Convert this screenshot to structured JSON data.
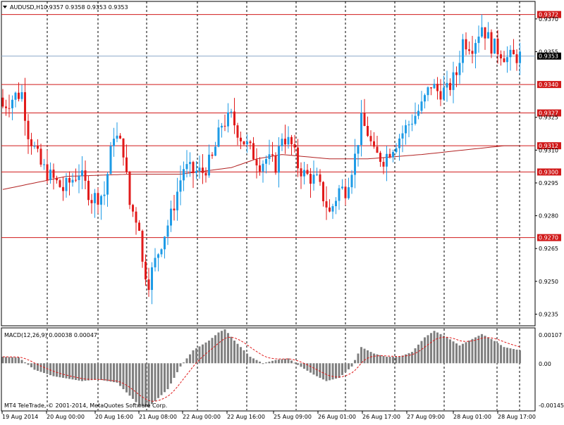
{
  "header": {
    "symbol_timeframe": "AUDUSD,H1",
    "ohlc": "0.9357 0.9358 0.9353 0.9353"
  },
  "macd": {
    "label": "MACD(12,26,9) 0.00038 0.00047",
    "top_label": "0.00107",
    "zero_label": "0.00",
    "bottom_label": "-0.00145"
  },
  "copyright": "MT4 TeleTrade, © 2001-2014, MetaQuotes Software Corp.",
  "colors": {
    "bull": "#1e9be6",
    "bear": "#e11b1b",
    "level_line": "#d11a1a",
    "current_line": "#8aa8c8",
    "ma_line": "#b22222",
    "macd_hist": "#808080",
    "signal_line": "#e11b1b"
  },
  "chart_data": {
    "type": "candlestick",
    "symbol": "AUDUSD",
    "timeframe": "H1",
    "current_price": 0.9353,
    "current_price_label": "0.9353",
    "price_axis_labels": [
      "0.9370",
      "0.9355",
      "0.9325",
      "0.9310",
      "0.9295",
      "0.9280",
      "0.9265",
      "0.9250",
      "0.9235"
    ],
    "levels": [
      {
        "value": 0.9372,
        "label": "0.9372"
      },
      {
        "value": 0.934,
        "label": "0.9340"
      },
      {
        "value": 0.9327,
        "label": "0.9327"
      },
      {
        "value": 0.9312,
        "label": "0.9312"
      },
      {
        "value": 0.93,
        "label": "0.9300"
      },
      {
        "value": 0.927,
        "label": "0.9270"
      }
    ],
    "time_labels": [
      "19 Aug 2014",
      "20 Aug 00:00",
      "20 Aug 16:00",
      "21 Aug 08:00",
      "22 Aug 00:00",
      "22 Aug 16:00",
      "25 Aug 09:00",
      "26 Aug 01:00",
      "26 Aug 17:00",
      "27 Aug 09:00",
      "28 Aug 01:00",
      "28 Aug 17:00"
    ],
    "close_path": [
      [
        0,
        0.933
      ],
      [
        4,
        0.9335
      ],
      [
        6,
        0.9336
      ],
      [
        8,
        0.9318
      ],
      [
        12,
        0.9303
      ],
      [
        15,
        0.9298
      ],
      [
        19,
        0.9292
      ],
      [
        24,
        0.93
      ],
      [
        28,
        0.9288
      ],
      [
        32,
        0.929
      ],
      [
        35,
        0.9318
      ],
      [
        38,
        0.931
      ],
      [
        40,
        0.9285
      ],
      [
        43,
        0.9276
      ],
      [
        44,
        0.9258
      ],
      [
        46,
        0.925
      ],
      [
        50,
        0.9268
      ],
      [
        53,
        0.928
      ],
      [
        57,
        0.9302
      ],
      [
        60,
        0.93
      ],
      [
        63,
        0.93
      ],
      [
        66,
        0.9306
      ],
      [
        69,
        0.9322
      ],
      [
        72,
        0.9325
      ],
      [
        75,
        0.9316
      ],
      [
        78,
        0.931
      ],
      [
        81,
        0.9304
      ],
      [
        83,
        0.9306
      ],
      [
        86,
        0.9303
      ],
      [
        88,
        0.9317
      ],
      [
        91,
        0.9312
      ],
      [
        93,
        0.9303
      ],
      [
        95,
        0.9299
      ],
      [
        99,
        0.9296
      ],
      [
        102,
        0.9285
      ],
      [
        103,
        0.9281
      ],
      [
        106,
        0.9292
      ],
      [
        108,
        0.9292
      ],
      [
        111,
        0.9307
      ],
      [
        113,
        0.9323
      ],
      [
        115,
        0.9318
      ],
      [
        117,
        0.9308
      ],
      [
        120,
        0.9306
      ],
      [
        123,
        0.9312
      ],
      [
        126,
        0.9318
      ],
      [
        129,
        0.9324
      ],
      [
        132,
        0.933
      ],
      [
        135,
        0.934
      ],
      [
        137,
        0.9337
      ],
      [
        140,
        0.9337
      ],
      [
        143,
        0.9345
      ],
      [
        145,
        0.936
      ],
      [
        148,
        0.9358
      ],
      [
        151,
        0.9367
      ],
      [
        154,
        0.9358
      ],
      [
        157,
        0.9355
      ],
      [
        159,
        0.9352
      ],
      [
        163,
        0.9353
      ]
    ],
    "ma_path": [
      [
        0,
        0.9292
      ],
      [
        20,
        0.9298
      ],
      [
        40,
        0.9299
      ],
      [
        56,
        0.9299
      ],
      [
        72,
        0.9302
      ],
      [
        80,
        0.9306
      ],
      [
        88,
        0.9308
      ],
      [
        103,
        0.9306
      ],
      [
        115,
        0.9306
      ],
      [
        132,
        0.9308
      ],
      [
        145,
        0.931
      ],
      [
        158,
        0.9312
      ],
      [
        163,
        0.9312
      ]
    ],
    "macd_path": [
      [
        0,
        0.0002
      ],
      [
        5,
        0.00018
      ],
      [
        10,
        -0.0002
      ],
      [
        16,
        -0.0004
      ],
      [
        25,
        -0.00055
      ],
      [
        30,
        -0.0005
      ],
      [
        36,
        -0.0006
      ],
      [
        40,
        -0.001
      ],
      [
        43,
        -0.0013
      ],
      [
        46,
        -0.00135
      ],
      [
        52,
        -0.0008
      ],
      [
        56,
        -0.0001
      ],
      [
        60,
        0.0004
      ],
      [
        65,
        0.0007
      ],
      [
        68,
        0.00095
      ],
      [
        70,
        0.00105
      ],
      [
        73,
        0.0007
      ],
      [
        78,
        0.0002
      ],
      [
        82,
        0.0
      ],
      [
        86,
        0.0001
      ],
      [
        90,
        0.00015
      ],
      [
        93,
        -5e-05
      ],
      [
        98,
        -0.00035
      ],
      [
        102,
        -0.00055
      ],
      [
        106,
        -0.00045
      ],
      [
        110,
        -0.0001
      ],
      [
        113,
        0.0005
      ],
      [
        117,
        0.0003
      ],
      [
        121,
        0.0002
      ],
      [
        125,
        0.0002
      ],
      [
        129,
        0.00035
      ],
      [
        133,
        0.0008
      ],
      [
        136,
        0.001
      ],
      [
        140,
        0.0008
      ],
      [
        144,
        0.00055
      ],
      [
        148,
        0.00075
      ],
      [
        151,
        0.0009
      ],
      [
        154,
        0.00075
      ],
      [
        158,
        0.0005
      ],
      [
        163,
        0.0004
      ]
    ],
    "y_range": [
      0.923,
      0.9378
    ],
    "macd_range": [
      -0.00145,
      0.00107
    ]
  }
}
